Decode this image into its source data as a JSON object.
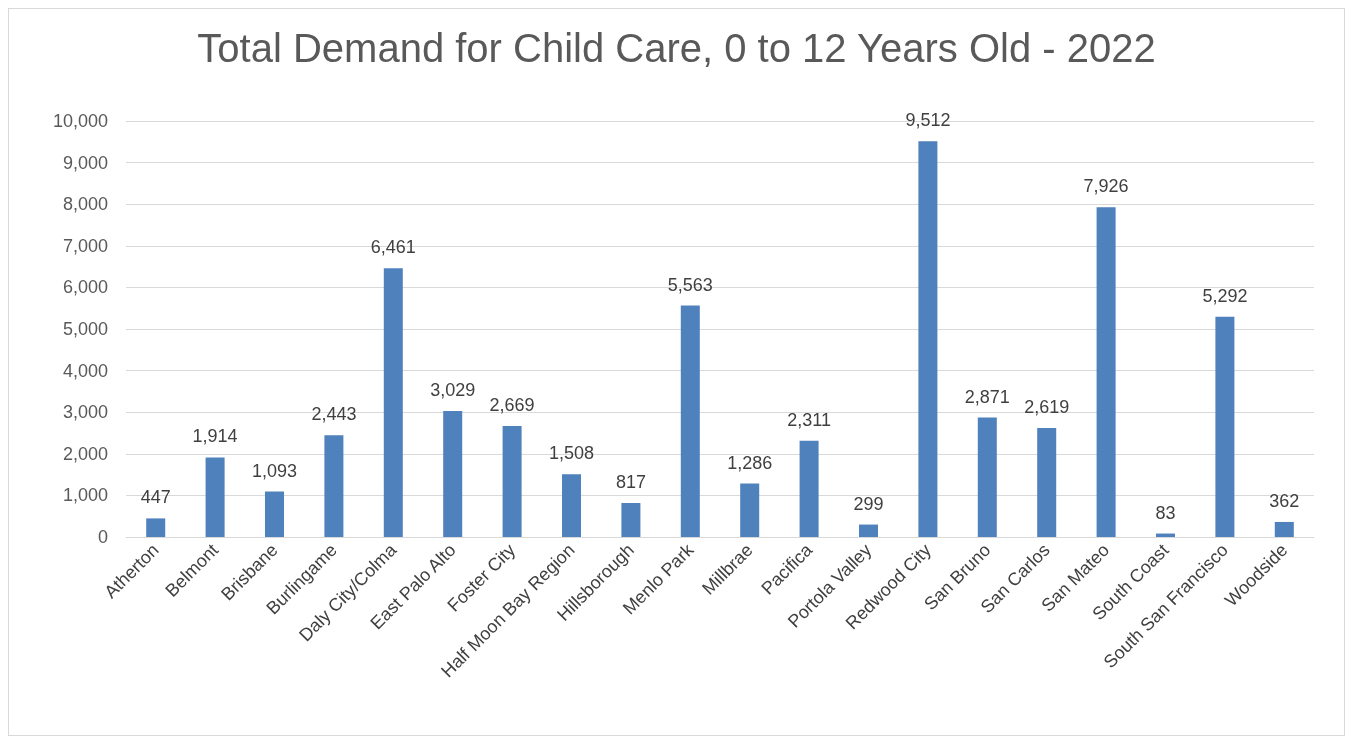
{
  "chart_data": {
    "type": "bar",
    "title": "Total Demand for Child Care, 0 to 12 Years Old - 2022",
    "categories": [
      "Atherton",
      "Belmont",
      "Brisbane",
      "Burlingame",
      "Daly City/Colma",
      "East Palo Alto",
      "Foster City",
      "Half Moon Bay Region",
      "Hillsborough",
      "Menlo Park",
      "Millbrae",
      "Pacifica",
      "Portola Valley",
      "Redwood City",
      "San Bruno",
      "San Carlos",
      "San Mateo",
      "South Coast",
      "South San Francisco",
      "Woodside"
    ],
    "values": [
      447,
      1914,
      1093,
      2443,
      6461,
      3029,
      2669,
      1508,
      817,
      5563,
      1286,
      2311,
      299,
      9512,
      2871,
      2619,
      7926,
      83,
      5292,
      362
    ],
    "color": "#4f81bd",
    "ylim": [
      0,
      10000
    ],
    "yticks": [
      {
        "value": 0,
        "label": "0"
      },
      {
        "value": 1000,
        "label": "1,000"
      },
      {
        "value": 2000,
        "label": "2,000"
      },
      {
        "value": 3000,
        "label": "3,000"
      },
      {
        "value": 4000,
        "label": "4,000"
      },
      {
        "value": 5000,
        "label": "5,000"
      },
      {
        "value": 6000,
        "label": "6,000"
      },
      {
        "value": 7000,
        "label": "7,000"
      },
      {
        "value": 8000,
        "label": "8,000"
      },
      {
        "value": 9000,
        "label": "9,000"
      },
      {
        "value": 10000,
        "label": "10,000"
      }
    ],
    "value_labels": [
      "447",
      "1,914",
      "1,093",
      "2,443",
      "6,461",
      "3,029",
      "2,669",
      "1,508",
      "817",
      "5,563",
      "1,286",
      "2,311",
      "299",
      "9,512",
      "2,871",
      "2,619",
      "7,926",
      "83",
      "5,292",
      "362"
    ],
    "grid": true
  }
}
